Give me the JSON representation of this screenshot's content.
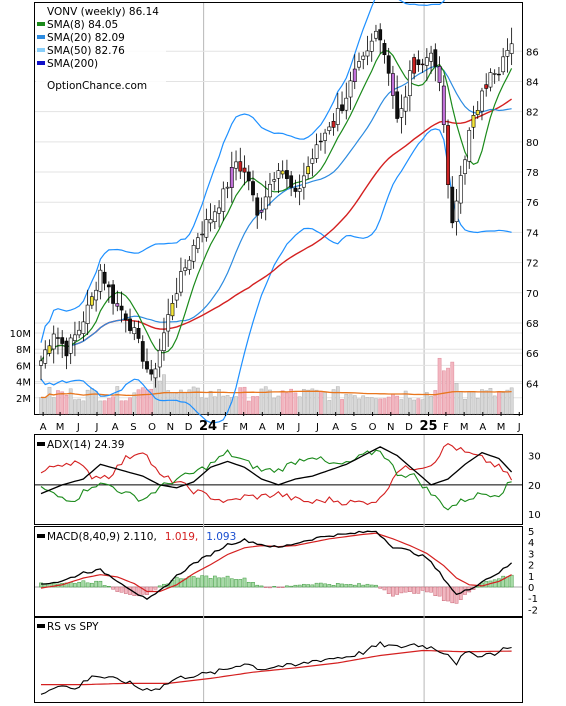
{
  "chart_data": [
    {
      "type": "line",
      "panel": "price",
      "title": "VONV (weekly) 86.14",
      "legend": [
        {
          "label": "SMA(8) 84.05",
          "color": "#1a8a1a"
        },
        {
          "label": "SMA(20) 82.09",
          "color": "#2c8be0"
        },
        {
          "label": "SMA(50) 82.76",
          "color": "#87cefa"
        },
        {
          "label": "SMA(200)",
          "color": "#1010c8"
        }
      ],
      "watermark": "OptionChance.com",
      "legend_position": "top-left",
      "ylim": [
        62.5,
        89
      ],
      "y_ticks": [
        "64",
        "66",
        "68",
        "70",
        "72",
        "74",
        "76",
        "78",
        "80",
        "82",
        "84",
        "86"
      ],
      "grid": true,
      "price_path_anchors": [
        [
          0,
          65.5
        ],
        [
          3,
          67.5
        ],
        [
          6,
          66.2
        ],
        [
          9,
          67.6
        ],
        [
          12,
          69.6
        ],
        [
          14,
          71.5
        ],
        [
          17,
          69.6
        ],
        [
          20,
          68.5
        ],
        [
          22,
          67.3
        ],
        [
          24,
          65.8
        ],
        [
          26,
          64.2
        ],
        [
          29,
          67.3
        ],
        [
          31,
          69.5
        ],
        [
          34,
          71.7
        ],
        [
          37,
          73.8
        ],
        [
          40,
          75.0
        ],
        [
          43,
          76.5
        ],
        [
          46,
          78.7
        ],
        [
          49,
          77.5
        ],
        [
          51,
          75.0
        ],
        [
          53,
          76.6
        ],
        [
          56,
          78.5
        ],
        [
          58,
          77.4
        ],
        [
          60,
          76.3
        ],
        [
          62,
          77.8
        ],
        [
          65,
          79.5
        ],
        [
          68,
          81.2
        ],
        [
          71,
          82.4
        ],
        [
          74,
          84.5
        ],
        [
          77,
          85.7
        ],
        [
          79,
          87.2
        ],
        [
          81,
          86.2
        ],
        [
          83,
          83.2
        ],
        [
          84,
          81.8
        ],
        [
          86,
          82.8
        ],
        [
          87,
          84.5
        ],
        [
          88,
          85.8
        ],
        [
          89,
          84.7
        ],
        [
          90,
          85.6
        ],
        [
          92,
          85.8
        ],
        [
          94,
          84.3
        ],
        [
          95,
          80.7
        ],
        [
          96,
          77.2
        ],
        [
          97,
          74.3
        ],
        [
          98,
          76.0
        ],
        [
          99,
          77.8
        ],
        [
          101,
          80.5
        ],
        [
          103,
          82.3
        ],
        [
          104,
          83.8
        ],
        [
          106,
          84.4
        ],
        [
          108,
          84.3
        ],
        [
          110,
          86.3
        ],
        [
          111,
          86.2
        ]
      ],
      "sma8_color": "#1a8a1a",
      "sma20_color": "#2c8be0",
      "sma50_color": "#d42020",
      "band_color": "#1e90ff"
    },
    {
      "type": "bar",
      "panel": "volume",
      "y_ticks": [
        "10M",
        "8M",
        "6M",
        "4M",
        "2M"
      ],
      "ylim": [
        0,
        11
      ],
      "note": "weekly volume bars in millions; average volume line in orange"
    },
    {
      "type": "line",
      "panel": "adx",
      "label": "ADX(14) 24.39",
      "ylim": [
        8,
        36
      ],
      "y_ticks": [
        "30",
        "20",
        "10"
      ],
      "adx_anchors": [
        [
          0,
          17
        ],
        [
          5,
          20
        ],
        [
          10,
          22
        ],
        [
          14,
          27
        ],
        [
          19,
          25
        ],
        [
          24,
          23
        ],
        [
          28,
          20
        ],
        [
          32,
          19
        ],
        [
          36,
          21
        ],
        [
          40,
          26
        ],
        [
          44,
          28
        ],
        [
          48,
          26
        ],
        [
          52,
          22
        ],
        [
          56,
          20
        ],
        [
          60,
          22
        ],
        [
          64,
          23
        ],
        [
          68,
          25
        ],
        [
          72,
          27
        ],
        [
          76,
          30
        ],
        [
          80,
          33
        ],
        [
          84,
          30
        ],
        [
          88,
          25
        ],
        [
          92,
          20
        ],
        [
          96,
          22
        ],
        [
          100,
          27
        ],
        [
          104,
          31
        ],
        [
          108,
          29
        ],
        [
          111,
          24.4
        ]
      ],
      "pdi_anchors": [
        [
          0,
          19
        ],
        [
          4,
          16
        ],
        [
          8,
          15
        ],
        [
          12,
          20
        ],
        [
          16,
          20
        ],
        [
          20,
          17
        ],
        [
          24,
          15
        ],
        [
          28,
          19
        ],
        [
          32,
          22
        ],
        [
          36,
          24
        ],
        [
          40,
          27
        ],
        [
          44,
          31
        ],
        [
          48,
          28
        ],
        [
          52,
          25
        ],
        [
          56,
          25
        ],
        [
          60,
          28
        ],
        [
          64,
          30
        ],
        [
          68,
          27
        ],
        [
          72,
          27
        ],
        [
          76,
          30
        ],
        [
          80,
          32
        ],
        [
          84,
          24
        ],
        [
          88,
          23
        ],
        [
          92,
          17
        ],
        [
          96,
          12
        ],
        [
          100,
          15
        ],
        [
          104,
          17
        ],
        [
          108,
          17
        ],
        [
          111,
          21
        ]
      ],
      "mdi_anchors": [
        [
          0,
          24
        ],
        [
          4,
          27
        ],
        [
          8,
          28
        ],
        [
          12,
          23
        ],
        [
          16,
          23
        ],
        [
          20,
          29
        ],
        [
          24,
          32
        ],
        [
          28,
          23
        ],
        [
          32,
          21
        ],
        [
          36,
          18
        ],
        [
          40,
          16
        ],
        [
          44,
          14
        ],
        [
          48,
          16
        ],
        [
          52,
          16
        ],
        [
          56,
          17
        ],
        [
          60,
          15
        ],
        [
          64,
          14
        ],
        [
          68,
          15
        ],
        [
          72,
          14
        ],
        [
          76,
          14
        ],
        [
          80,
          15
        ],
        [
          84,
          25
        ],
        [
          88,
          26
        ],
        [
          92,
          27
        ],
        [
          96,
          34
        ],
        [
          100,
          31
        ],
        [
          104,
          29
        ],
        [
          108,
          26
        ],
        [
          111,
          22
        ]
      ],
      "adx_color": "#000000",
      "pdi_color": "#1a8a1a",
      "mdi_color": "#d42020"
    },
    {
      "type": "line",
      "panel": "macd",
      "label": "MACD(8,40,9) 2.110,",
      "value_red": "1.019,",
      "value_blue": "1.093",
      "ylim": [
        -2.6,
        5.3
      ],
      "y_ticks": [
        "5",
        "4",
        "3",
        "2",
        "1",
        "0",
        "-1",
        "-2"
      ],
      "macd_anchors": [
        [
          0,
          0.3
        ],
        [
          5,
          0.5
        ],
        [
          10,
          1.3
        ],
        [
          14,
          1.5
        ],
        [
          18,
          0.6
        ],
        [
          22,
          -0.4
        ],
        [
          25,
          -1.2
        ],
        [
          28,
          -0.4
        ],
        [
          32,
          1.0
        ],
        [
          36,
          2.1
        ],
        [
          40,
          2.9
        ],
        [
          44,
          3.8
        ],
        [
          48,
          4.2
        ],
        [
          52,
          3.8
        ],
        [
          56,
          3.5
        ],
        [
          60,
          3.9
        ],
        [
          64,
          4.3
        ],
        [
          68,
          4.6
        ],
        [
          72,
          4.7
        ],
        [
          76,
          4.9
        ],
        [
          79,
          5.0
        ],
        [
          83,
          3.6
        ],
        [
          87,
          3.2
        ],
        [
          91,
          2.6
        ],
        [
          95,
          0.8
        ],
        [
          98,
          -0.7
        ],
        [
          101,
          -0.2
        ],
        [
          104,
          0.5
        ],
        [
          108,
          1.3
        ],
        [
          111,
          2.1
        ]
      ],
      "signal_anchors": [
        [
          0,
          -0.1
        ],
        [
          5,
          0.2
        ],
        [
          10,
          0.8
        ],
        [
          14,
          1.1
        ],
        [
          18,
          0.9
        ],
        [
          22,
          0.3
        ],
        [
          25,
          -0.4
        ],
        [
          28,
          -0.4
        ],
        [
          32,
          0.2
        ],
        [
          36,
          1.2
        ],
        [
          40,
          2.0
        ],
        [
          44,
          2.9
        ],
        [
          48,
          3.5
        ],
        [
          52,
          3.7
        ],
        [
          56,
          3.6
        ],
        [
          60,
          3.7
        ],
        [
          64,
          4.0
        ],
        [
          68,
          4.3
        ],
        [
          72,
          4.5
        ],
        [
          76,
          4.7
        ],
        [
          79,
          4.8
        ],
        [
          83,
          4.3
        ],
        [
          87,
          3.7
        ],
        [
          91,
          3.0
        ],
        [
          95,
          1.9
        ],
        [
          98,
          0.8
        ],
        [
          101,
          0.2
        ],
        [
          104,
          0.1
        ],
        [
          108,
          0.5
        ],
        [
          111,
          1.1
        ]
      ],
      "macd_color": "#000000",
      "signal_color": "#d42020"
    },
    {
      "type": "line",
      "panel": "relative-strength",
      "label": "RS vs SPY",
      "ylim": [
        0,
        1
      ],
      "rs_anchors": [
        [
          0,
          0.05
        ],
        [
          4,
          0.2
        ],
        [
          8,
          0.12
        ],
        [
          12,
          0.35
        ],
        [
          16,
          0.3
        ],
        [
          20,
          0.25
        ],
        [
          24,
          0.12
        ],
        [
          28,
          0.15
        ],
        [
          32,
          0.3
        ],
        [
          36,
          0.35
        ],
        [
          40,
          0.38
        ],
        [
          44,
          0.45
        ],
        [
          48,
          0.55
        ],
        [
          52,
          0.45
        ],
        [
          56,
          0.5
        ],
        [
          60,
          0.5
        ],
        [
          64,
          0.58
        ],
        [
          68,
          0.62
        ],
        [
          72,
          0.65
        ],
        [
          76,
          0.72
        ],
        [
          80,
          0.85
        ],
        [
          84,
          0.8
        ],
        [
          88,
          0.85
        ],
        [
          92,
          0.8
        ],
        [
          96,
          0.7
        ],
        [
          98,
          0.55
        ],
        [
          100,
          0.7
        ],
        [
          104,
          0.68
        ],
        [
          108,
          0.72
        ],
        [
          110,
          0.82
        ],
        [
          111,
          0.78
        ]
      ],
      "rs_ma_anchors": [
        [
          0,
          0.2
        ],
        [
          10,
          0.2
        ],
        [
          20,
          0.22
        ],
        [
          30,
          0.22
        ],
        [
          40,
          0.3
        ],
        [
          50,
          0.4
        ],
        [
          60,
          0.47
        ],
        [
          70,
          0.55
        ],
        [
          80,
          0.67
        ],
        [
          90,
          0.75
        ],
        [
          100,
          0.73
        ],
        [
          111,
          0.74
        ]
      ],
      "rs_color": "#000000",
      "rs_ma_color": "#d42020"
    }
  ],
  "x_axis": {
    "labels": [
      {
        "text": "A",
        "week": 0.5,
        "bold": false
      },
      {
        "text": "M",
        "week": 4.5,
        "bold": false
      },
      {
        "text": "J",
        "week": 8.8,
        "bold": false
      },
      {
        "text": "J",
        "week": 13.2,
        "bold": false
      },
      {
        "text": "A",
        "week": 17.5,
        "bold": false
      },
      {
        "text": "S",
        "week": 21.8,
        "bold": false
      },
      {
        "text": "O",
        "week": 26.2,
        "bold": false
      },
      {
        "text": "N",
        "week": 30.5,
        "bold": false
      },
      {
        "text": "D",
        "week": 34.8,
        "bold": false
      },
      {
        "text": "24",
        "week": 39.4,
        "bold": true
      },
      {
        "text": "F",
        "week": 43.5,
        "bold": false
      },
      {
        "text": "M",
        "week": 47.8,
        "bold": false
      },
      {
        "text": "A",
        "week": 52.2,
        "bold": false
      },
      {
        "text": "M",
        "week": 56.5,
        "bold": false
      },
      {
        "text": "J",
        "week": 60.8,
        "bold": false
      },
      {
        "text": "J",
        "week": 65.2,
        "bold": false
      },
      {
        "text": "A",
        "week": 69.5,
        "bold": false
      },
      {
        "text": "S",
        "week": 73.8,
        "bold": false
      },
      {
        "text": "O",
        "week": 78.2,
        "bold": false
      },
      {
        "text": "N",
        "week": 82.5,
        "bold": false
      },
      {
        "text": "D",
        "week": 86.8,
        "bold": false
      },
      {
        "text": "25",
        "week": 91.4,
        "bold": true
      },
      {
        "text": "F",
        "week": 95.5,
        "bold": false
      },
      {
        "text": "M",
        "week": 99.8,
        "bold": false
      },
      {
        "text": "A",
        "week": 104.2,
        "bold": false
      },
      {
        "text": "M",
        "week": 108.5,
        "bold": false
      },
      {
        "text": "J",
        "week": 112.8,
        "bold": false
      }
    ],
    "year_dividers": [
      38,
      90
    ]
  }
}
